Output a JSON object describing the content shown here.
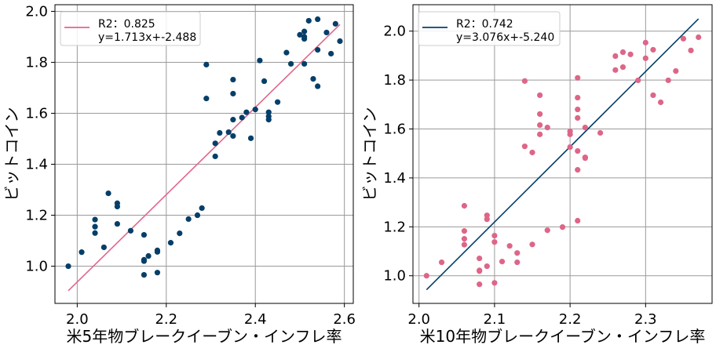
{
  "chart_data": [
    {
      "type": "scatter",
      "xlabel": "米5年物ブレークイーブン・インフレ率",
      "ylabel": "ビットコイン",
      "xlim": [
        1.95,
        2.62
      ],
      "ylim": [
        0.854,
        2.026
      ],
      "xticks": [
        "2.0",
        "2.2",
        "2.4",
        "2.6"
      ],
      "yticks": [
        "1.0",
        "1.2",
        "1.4",
        "1.6",
        "1.8",
        "2.0"
      ],
      "grid": true,
      "legend_position": "top-left",
      "point_color": "#053f69",
      "line_color": "#e0678a",
      "legend": {
        "r2": "R2：0.825",
        "equation": "y=1.713x+-2.488"
      },
      "fit": {
        "slope": 1.713,
        "intercept": -2.488,
        "x_range": [
          1.98,
          2.59
        ]
      },
      "points": [
        [
          1.98,
          1.0
        ],
        [
          2.01,
          1.055
        ],
        [
          2.04,
          1.183
        ],
        [
          2.04,
          1.155
        ],
        [
          2.04,
          1.13
        ],
        [
          2.06,
          1.074
        ],
        [
          2.07,
          1.286
        ],
        [
          2.09,
          1.247
        ],
        [
          2.09,
          1.234
        ],
        [
          2.09,
          1.166
        ],
        [
          2.12,
          1.139
        ],
        [
          2.15,
          1.123
        ],
        [
          2.15,
          1.025
        ],
        [
          2.15,
          1.02
        ],
        [
          2.15,
          0.966
        ],
        [
          2.16,
          1.04
        ],
        [
          2.18,
          1.062
        ],
        [
          2.18,
          1.056
        ],
        [
          2.18,
          0.975
        ],
        [
          2.21,
          1.092
        ],
        [
          2.23,
          1.129
        ],
        [
          2.25,
          1.185
        ],
        [
          2.27,
          1.2
        ],
        [
          2.28,
          1.228
        ],
        [
          2.29,
          1.791
        ],
        [
          2.29,
          1.658
        ],
        [
          2.31,
          1.482
        ],
        [
          2.31,
          1.431
        ],
        [
          2.32,
          1.523
        ],
        [
          2.34,
          1.526
        ],
        [
          2.35,
          1.732
        ],
        [
          2.35,
          1.677
        ],
        [
          2.35,
          1.575
        ],
        [
          2.35,
          1.511
        ],
        [
          2.37,
          1.583
        ],
        [
          2.38,
          1.604
        ],
        [
          2.39,
          1.502
        ],
        [
          2.4,
          1.615
        ],
        [
          2.41,
          1.807
        ],
        [
          2.42,
          1.726
        ],
        [
          2.43,
          1.604
        ],
        [
          2.43,
          1.588
        ],
        [
          2.43,
          1.575
        ],
        [
          2.45,
          1.644
        ],
        [
          2.47,
          1.838
        ],
        [
          2.48,
          1.794
        ],
        [
          2.5,
          1.908
        ],
        [
          2.51,
          1.921
        ],
        [
          2.51,
          1.9
        ],
        [
          2.51,
          1.892
        ],
        [
          2.51,
          1.794
        ],
        [
          2.52,
          1.963
        ],
        [
          2.53,
          1.735
        ],
        [
          2.54,
          1.969
        ],
        [
          2.54,
          1.849
        ],
        [
          2.54,
          1.706
        ],
        [
          2.56,
          1.917
        ],
        [
          2.57,
          1.834
        ],
        [
          2.58,
          1.951
        ],
        [
          2.59,
          1.883
        ]
      ]
    },
    {
      "type": "scatter",
      "xlabel": "米10年物ブレークイーブン・インフレ率",
      "ylabel": "ビットコイン",
      "xlim": [
        1.992,
        2.388
      ],
      "ylim": [
        0.887,
        2.108
      ],
      "xticks": [
        "2.0",
        "2.1",
        "2.2",
        "2.3"
      ],
      "yticks": [
        "1.0",
        "1.2",
        "1.4",
        "1.6",
        "1.8",
        "2.0"
      ],
      "grid": true,
      "legend_position": "top-left",
      "point_color": "#dd6688",
      "line_color": "#053f69",
      "legend": {
        "r2": "R2：0.742",
        "equation": "y=3.076x+-5.240"
      },
      "fit": {
        "slope": 3.076,
        "intercept": -5.24,
        "x_range": [
          2.01,
          2.37
        ]
      },
      "points": [
        [
          2.01,
          1.0
        ],
        [
          2.03,
          1.055
        ],
        [
          2.06,
          1.286
        ],
        [
          2.06,
          1.183
        ],
        [
          2.06,
          1.151
        ],
        [
          2.06,
          1.127
        ],
        [
          2.08,
          1.071
        ],
        [
          2.08,
          1.022
        ],
        [
          2.08,
          1.019
        ],
        [
          2.08,
          0.965
        ],
        [
          2.09,
          1.247
        ],
        [
          2.09,
          1.231
        ],
        [
          2.09,
          1.039
        ],
        [
          2.1,
          1.164
        ],
        [
          2.1,
          1.138
        ],
        [
          2.1,
          0.971
        ],
        [
          2.11,
          1.058
        ],
        [
          2.12,
          1.122
        ],
        [
          2.13,
          1.093
        ],
        [
          2.13,
          1.055
        ],
        [
          2.14,
          1.796
        ],
        [
          2.14,
          1.529
        ],
        [
          2.15,
          1.504
        ],
        [
          2.15,
          1.128
        ],
        [
          2.16,
          1.738
        ],
        [
          2.16,
          1.661
        ],
        [
          2.16,
          1.616
        ],
        [
          2.16,
          1.578
        ],
        [
          2.17,
          1.606
        ],
        [
          2.17,
          1.186
        ],
        [
          2.19,
          1.199
        ],
        [
          2.2,
          1.59
        ],
        [
          2.2,
          1.578
        ],
        [
          2.2,
          1.526
        ],
        [
          2.21,
          1.809
        ],
        [
          2.21,
          1.728
        ],
        [
          2.21,
          1.68
        ],
        [
          2.21,
          1.645
        ],
        [
          2.21,
          1.51
        ],
        [
          2.21,
          1.433
        ],
        [
          2.21,
          1.225
        ],
        [
          2.22,
          1.606
        ],
        [
          2.22,
          1.484
        ],
        [
          2.22,
          1.481
        ],
        [
          2.24,
          1.584
        ],
        [
          2.26,
          1.898
        ],
        [
          2.26,
          1.841
        ],
        [
          2.27,
          1.914
        ],
        [
          2.27,
          1.853
        ],
        [
          2.28,
          1.905
        ],
        [
          2.29,
          1.799
        ],
        [
          2.3,
          1.953
        ],
        [
          2.3,
          1.889
        ],
        [
          2.31,
          1.924
        ],
        [
          2.31,
          1.738
        ],
        [
          2.32,
          1.709
        ],
        [
          2.33,
          1.799
        ],
        [
          2.34,
          1.837
        ],
        [
          2.35,
          1.969
        ],
        [
          2.36,
          1.921
        ],
        [
          2.37,
          1.975
        ]
      ]
    }
  ]
}
